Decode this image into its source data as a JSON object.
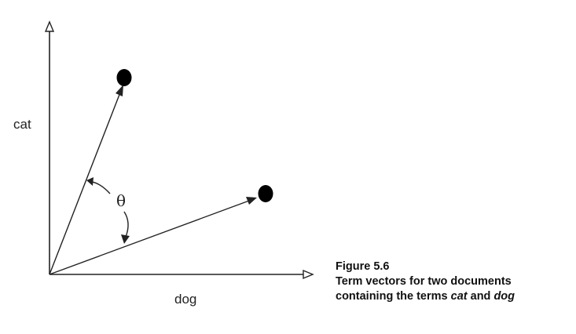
{
  "diagram": {
    "x_axis_label": "dog",
    "y_axis_label": "cat",
    "angle_label": "θ"
  },
  "caption": {
    "figure_number": "Figure 5.6",
    "line1": "Term vectors for two documents",
    "line2_prefix": "containing the terms ",
    "term1": "cat",
    "conjunction": " and ",
    "term2": "dog"
  },
  "colors": {
    "line": "#222222",
    "point": "#000000",
    "background": "#ffffff"
  }
}
